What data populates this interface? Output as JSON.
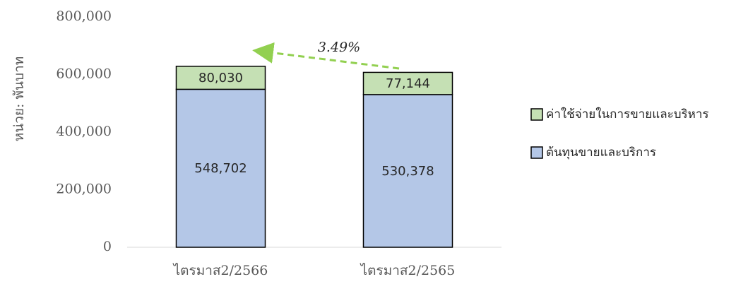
{
  "chart_data": {
    "type": "stacked_bar",
    "y_label": "หน่วย: พันบาท",
    "annotation": "3.49%",
    "categories": [
      "ไตรมาส2/2566",
      "ไตรมาส2/2565"
    ],
    "series": [
      {
        "name": "ต้นทุนขายและบริการ",
        "color": "#b4c7e7",
        "values": [
          548702,
          530378
        ],
        "value_labels": [
          "548,702",
          "530,378"
        ]
      },
      {
        "name": "ค่าใช้จ่ายในการขายและบริหาร",
        "color": "#c5e0b4",
        "values": [
          80030,
          77144
        ],
        "value_labels": [
          "80,030",
          "77,144"
        ]
      }
    ],
    "ylim": [
      0,
      800000
    ],
    "yticks": [
      0,
      {
        "value": 200000,
        "label": "200,000"
      },
      {
        "value": 400000,
        "label": "400,000"
      },
      {
        "value": 600000,
        "label": "600,000"
      },
      {
        "value": 800000,
        "label": "800,000"
      }
    ],
    "legend": "right"
  }
}
